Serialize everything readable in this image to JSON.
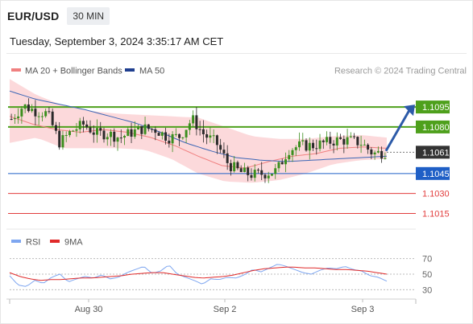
{
  "header": {
    "symbol": "EUR/USD",
    "timeframe": "30 MIN",
    "datetime": "Tuesday, September 3, 2024 3:35:17 AM CET"
  },
  "legend": {
    "ma20": "MA 20 + Bollinger Bands",
    "ma50": "MA 50",
    "credit": "Research © 2024 Trading Central"
  },
  "colors": {
    "bb_fill": "#fbd0d2",
    "ma20": "#f08080",
    "ma50": "#3c66b6",
    "green": "#4ea01c",
    "blue": "#1f5fc6",
    "red": "#e23c3c",
    "candle_up": "#3b8f1e",
    "candle_down": "#2a2a2a",
    "rsi": "#7ea6f0",
    "rsi_ma": "#e02a2a",
    "arrow": "#2c5aa8"
  },
  "chart_data": [
    {
      "type": "candlestick",
      "title": "EUR/USD 30 MIN",
      "x_ticks": [
        "Aug 30",
        "Sep 2",
        "Sep 3"
      ],
      "ylim": [
        1.1005,
        1.1115
      ],
      "levels": [
        {
          "value": 1.1095,
          "label": "1.1095",
          "style": "resistance"
        },
        {
          "value": 1.108,
          "label": "1.1080",
          "style": "resistance"
        },
        {
          "value": 1.1061,
          "label": "1.1061",
          "style": "current"
        },
        {
          "value": 1.1045,
          "label": "1.1045",
          "style": "pivot"
        },
        {
          "value": 1.103,
          "label": "1.1030",
          "style": "support"
        },
        {
          "value": 1.1015,
          "label": "1.1015",
          "style": "support"
        }
      ],
      "close_profile": [
        1.1086,
        1.1096,
        1.1092,
        1.109,
        1.1068,
        1.1077,
        1.1082,
        1.1075,
        1.1075,
        1.1072,
        1.1076,
        1.1079,
        1.1078,
        1.1072,
        1.1073,
        1.1086,
        1.1074,
        1.1068,
        1.1052,
        1.1046,
        1.1044,
        1.1045,
        1.1047,
        1.1063,
        1.1066,
        1.1066,
        1.1068,
        1.107,
        1.107,
        1.1068,
        1.106,
        1.1061
      ],
      "series": [
        {
          "name": "MA 20",
          "values": [
            1.1088,
            1.1082,
            1.1078,
            1.1076,
            1.1078,
            1.1076,
            1.1072,
            1.1066,
            1.1058,
            1.1051,
            1.1049,
            1.1054,
            1.1058,
            1.106,
            1.1064,
            1.1065,
            1.1064
          ]
        },
        {
          "name": "MA 50",
          "values": [
            1.1107,
            1.1101,
            1.1097,
            1.1093,
            1.1088,
            1.1083,
            1.1076,
            1.1068,
            1.1062,
            1.1057,
            1.1055,
            1.1054,
            1.1055,
            1.1056,
            1.1057,
            1.1058
          ]
        },
        {
          "name": "Bollinger upper",
          "values": [
            1.1116,
            1.1104,
            1.1096,
            1.1092,
            1.109,
            1.1089,
            1.1088,
            1.1087,
            1.108,
            1.1073,
            1.1071,
            1.1071,
            1.1073,
            1.1074,
            1.1072
          ]
        },
        {
          "name": "Bollinger lower",
          "values": [
            1.1068,
            1.1072,
            1.1064,
            1.1064,
            1.1064,
            1.1063,
            1.1056,
            1.1045,
            1.1039,
            1.1038,
            1.104,
            1.1045,
            1.1052,
            1.1055,
            1.1056
          ]
        }
      ]
    },
    {
      "type": "line",
      "title": "RSI",
      "ylim": [
        20,
        80
      ],
      "y_ticks": [
        70,
        50,
        30
      ],
      "legend": [
        "RSI",
        "9MA"
      ],
      "series": [
        {
          "name": "RSI",
          "values": [
            48,
            36,
            34,
            42,
            38,
            46,
            50,
            40,
            44,
            47,
            45,
            49,
            44,
            46,
            52,
            56,
            60,
            51,
            54,
            62,
            50,
            46,
            42,
            37,
            44,
            43,
            46,
            45,
            49,
            56,
            53,
            58,
            63,
            60,
            56,
            52,
            50,
            55,
            58,
            57,
            60,
            56,
            54,
            48,
            46,
            41
          ]
        },
        {
          "name": "9MA",
          "values": [
            52,
            47,
            44,
            42,
            43,
            43,
            44,
            45,
            45,
            46,
            47,
            48,
            50,
            51,
            52,
            52,
            50,
            48,
            46,
            45,
            46,
            47,
            49,
            52,
            55,
            57,
            58,
            59,
            59,
            58,
            58,
            57,
            56,
            56,
            55,
            54,
            52,
            50
          ]
        }
      ]
    }
  ]
}
